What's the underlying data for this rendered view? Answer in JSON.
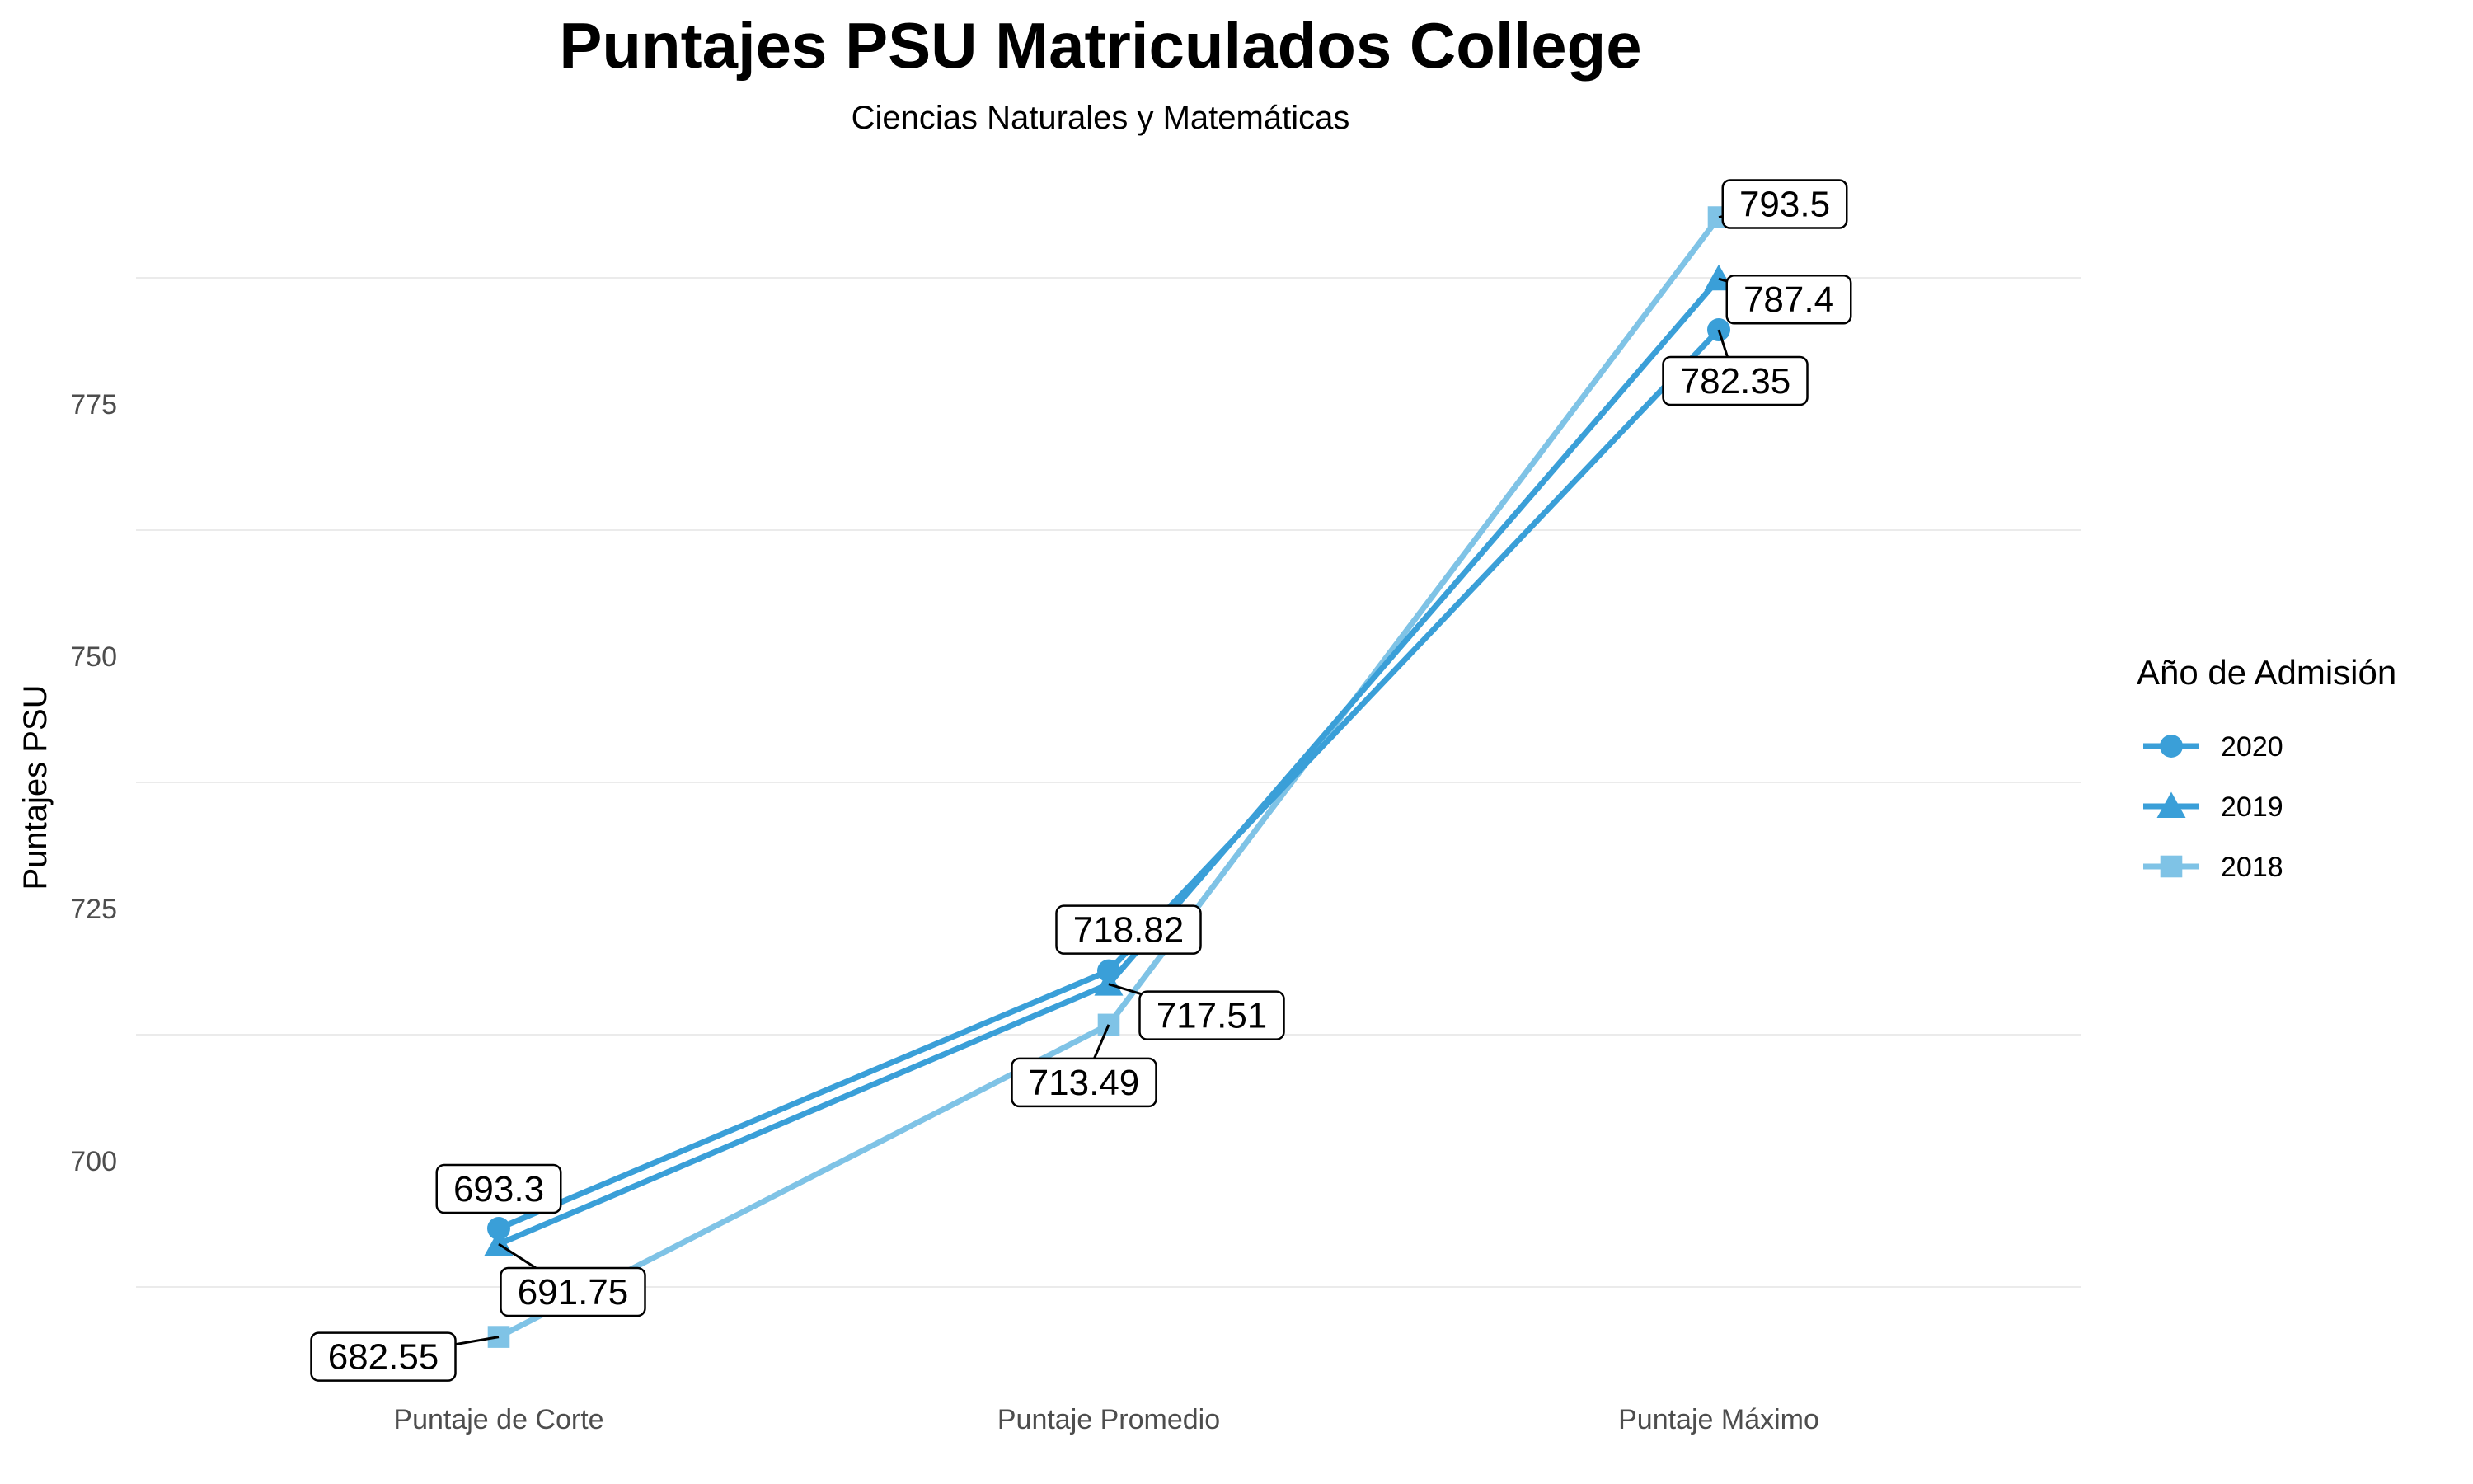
{
  "chart_data": {
    "type": "line",
    "title": "Puntajes PSU Matriculados College",
    "subtitle": "Ciencias Naturales y Matemáticas",
    "xlabel": "",
    "ylabel": "Puntajes PSU",
    "categories": [
      "Puntaje de Corte",
      "Puntaje Promedio",
      "Puntaje Máximo"
    ],
    "y_ticks": [
      700,
      725,
      750,
      775
    ],
    "ylim": [
      680,
      798
    ],
    "grid": true,
    "legend": {
      "title": "Año de Admisión",
      "position": "right"
    },
    "series": [
      {
        "name": "2020",
        "values": [
          693.3,
          718.82,
          782.35
        ],
        "labels": [
          "693.3",
          "718.82",
          "782.35"
        ],
        "color": "#3a9fd8",
        "marker": "circle"
      },
      {
        "name": "2019",
        "values": [
          691.75,
          717.51,
          787.4
        ],
        "labels": [
          "691.75",
          "717.51",
          "787.4"
        ],
        "color": "#3a9fd8",
        "marker": "triangle"
      },
      {
        "name": "2018",
        "values": [
          682.55,
          713.49,
          793.5
        ],
        "labels": [
          "682.55",
          "713.49",
          "793.5"
        ],
        "color": "#7fc3e6",
        "marker": "square"
      }
    ]
  }
}
